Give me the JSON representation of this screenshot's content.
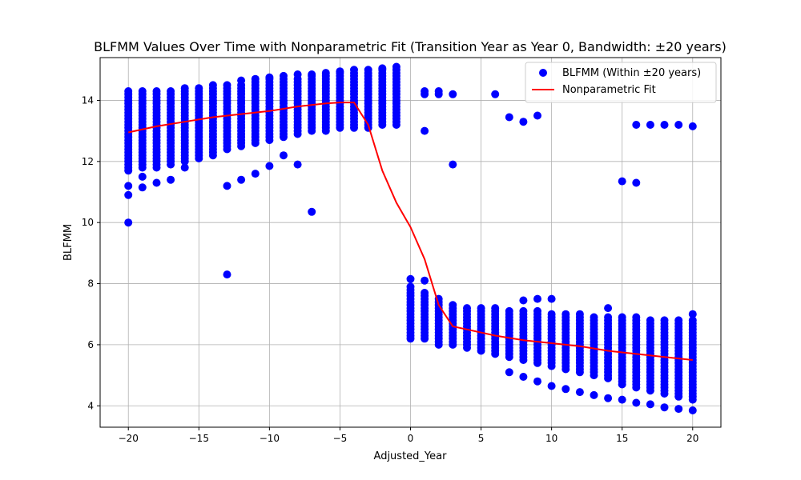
{
  "chart_data": {
    "type": "scatter",
    "title": "BLFMM Values Over Time with Nonparametric Fit (Transition Year as Year 0, Bandwidth: ±20 years)",
    "xlabel": "Adjusted_Year",
    "ylabel": "BLFMM",
    "xlim": [
      -22,
      22
    ],
    "ylim": [
      3.3,
      15.4
    ],
    "xticks": [
      -20,
      -15,
      -10,
      -5,
      0,
      5,
      10,
      15,
      20
    ],
    "yticks": [
      4,
      6,
      8,
      10,
      12,
      14
    ],
    "xtick_labels": [
      "−20",
      "−15",
      "−10",
      "−5",
      "0",
      "5",
      "10",
      "15",
      "20"
    ],
    "ytick_labels": [
      "4",
      "6",
      "8",
      "10",
      "12",
      "14"
    ],
    "grid": true,
    "legend_position": "top-right",
    "colors": {
      "scatter": "#0000ff",
      "fit": "#ff0000"
    },
    "series": [
      {
        "name": "BLFMM (Within ±20 years)",
        "kind": "scatter",
        "clusters": [
          {
            "x": -20,
            "lo": 11.7,
            "hi": 14.3
          },
          {
            "x": -19,
            "lo": 11.8,
            "hi": 14.3
          },
          {
            "x": -18,
            "lo": 11.8,
            "hi": 14.3
          },
          {
            "x": -17,
            "lo": 11.9,
            "hi": 14.3
          },
          {
            "x": -16,
            "lo": 12.0,
            "hi": 14.4
          },
          {
            "x": -15,
            "lo": 12.1,
            "hi": 14.4
          },
          {
            "x": -14,
            "lo": 12.2,
            "hi": 14.5
          },
          {
            "x": -13,
            "lo": 12.4,
            "hi": 14.5
          },
          {
            "x": -12,
            "lo": 12.5,
            "hi": 14.5
          },
          {
            "x": -11,
            "lo": 12.6,
            "hi": 14.6
          },
          {
            "x": -10,
            "lo": 12.7,
            "hi": 14.7
          },
          {
            "x": -9,
            "lo": 12.8,
            "hi": 14.7
          },
          {
            "x": -8,
            "lo": 12.9,
            "hi": 14.7
          },
          {
            "x": -7,
            "lo": 13.0,
            "hi": 14.8
          },
          {
            "x": -6,
            "lo": 13.0,
            "hi": 14.8
          },
          {
            "x": -5,
            "lo": 13.1,
            "hi": 14.9
          },
          {
            "x": -4,
            "lo": 13.1,
            "hi": 14.9
          },
          {
            "x": -3,
            "lo": 13.1,
            "hi": 14.9
          },
          {
            "x": -2,
            "lo": 13.2,
            "hi": 15.0
          },
          {
            "x": -1,
            "lo": 13.2,
            "hi": 15.0
          },
          {
            "x": 0,
            "lo": 6.2,
            "hi": 7.9
          },
          {
            "x": 1,
            "lo": 6.2,
            "hi": 7.7
          },
          {
            "x": 2,
            "lo": 6.0,
            "hi": 7.4
          },
          {
            "x": 3,
            "lo": 6.0,
            "hi": 7.3
          },
          {
            "x": 4,
            "lo": 5.9,
            "hi": 7.2
          },
          {
            "x": 5,
            "lo": 5.8,
            "hi": 7.2
          },
          {
            "x": 6,
            "lo": 5.7,
            "hi": 7.2
          },
          {
            "x": 7,
            "lo": 5.6,
            "hi": 7.1
          },
          {
            "x": 8,
            "lo": 5.5,
            "hi": 7.1
          },
          {
            "x": 9,
            "lo": 5.4,
            "hi": 7.1
          },
          {
            "x": 10,
            "lo": 5.3,
            "hi": 7.0
          },
          {
            "x": 11,
            "lo": 5.2,
            "hi": 7.0
          },
          {
            "x": 12,
            "lo": 5.1,
            "hi": 7.0
          },
          {
            "x": 13,
            "lo": 5.0,
            "hi": 6.9
          },
          {
            "x": 14,
            "lo": 4.9,
            "hi": 6.9
          },
          {
            "x": 15,
            "lo": 4.7,
            "hi": 6.9
          },
          {
            "x": 16,
            "lo": 4.6,
            "hi": 6.9
          },
          {
            "x": 17,
            "lo": 4.5,
            "hi": 6.8
          },
          {
            "x": 18,
            "lo": 4.4,
            "hi": 6.8
          },
          {
            "x": 19,
            "lo": 4.3,
            "hi": 6.8
          },
          {
            "x": 20,
            "lo": 4.2,
            "hi": 6.8
          }
        ],
        "outliers": [
          [
            -20,
            10.0
          ],
          [
            -20,
            10.9
          ],
          [
            -20,
            11.2
          ],
          [
            -19,
            11.15
          ],
          [
            -19,
            11.5
          ],
          [
            -18,
            11.3
          ],
          [
            -17,
            11.4
          ],
          [
            -16,
            11.8
          ],
          [
            -13,
            8.3
          ],
          [
            -13,
            11.2
          ],
          [
            -12,
            11.4
          ],
          [
            -11,
            11.6
          ],
          [
            -10,
            11.85
          ],
          [
            -9,
            12.2
          ],
          [
            -8,
            11.9
          ],
          [
            -7,
            10.35
          ],
          [
            -12,
            14.65
          ],
          [
            -11,
            14.7
          ],
          [
            -10,
            14.75
          ],
          [
            -9,
            14.8
          ],
          [
            -8,
            14.85
          ],
          [
            -7,
            14.85
          ],
          [
            -6,
            14.9
          ],
          [
            -5,
            14.95
          ],
          [
            -4,
            15.0
          ],
          [
            -3,
            15.0
          ],
          [
            -2,
            15.05
          ],
          [
            -1,
            15.1
          ],
          [
            1,
            14.3
          ],
          [
            1,
            14.2
          ],
          [
            1,
            13.0
          ],
          [
            2,
            14.3
          ],
          [
            2,
            14.2
          ],
          [
            3,
            14.2
          ],
          [
            3,
            11.9
          ],
          [
            6,
            14.2
          ],
          [
            7,
            13.45
          ],
          [
            8,
            13.3
          ],
          [
            9,
            13.5
          ],
          [
            15,
            11.35
          ],
          [
            16,
            11.3
          ],
          [
            16,
            13.2
          ],
          [
            17,
            13.2
          ],
          [
            18,
            13.2
          ],
          [
            19,
            13.2
          ],
          [
            20,
            13.15
          ],
          [
            0,
            8.15
          ],
          [
            1,
            8.1
          ],
          [
            2,
            7.5
          ],
          [
            8,
            7.45
          ],
          [
            9,
            7.5
          ],
          [
            10,
            7.5
          ],
          [
            14,
            7.2
          ],
          [
            20,
            7.0
          ],
          [
            7,
            5.1
          ],
          [
            8,
            4.95
          ],
          [
            9,
            4.8
          ],
          [
            10,
            4.65
          ],
          [
            11,
            4.55
          ],
          [
            12,
            4.45
          ],
          [
            13,
            4.35
          ],
          [
            14,
            4.25
          ],
          [
            15,
            4.2
          ],
          [
            16,
            4.1
          ],
          [
            17,
            4.05
          ],
          [
            18,
            3.95
          ],
          [
            19,
            3.9
          ],
          [
            20,
            3.85
          ]
        ]
      },
      {
        "name": "Nonparametric Fit",
        "kind": "line",
        "x": [
          -20,
          -18,
          -16,
          -14,
          -12,
          -10,
          -8,
          -6,
          -5,
          -4,
          -3,
          -2,
          -1,
          0,
          1,
          2,
          3,
          4,
          6,
          8,
          10,
          12,
          14,
          16,
          18,
          20
        ],
        "y": [
          12.95,
          13.15,
          13.3,
          13.45,
          13.55,
          13.65,
          13.8,
          13.9,
          13.93,
          13.93,
          13.2,
          11.7,
          10.65,
          9.85,
          8.8,
          7.3,
          6.6,
          6.5,
          6.3,
          6.15,
          6.05,
          5.95,
          5.8,
          5.7,
          5.6,
          5.5
        ]
      }
    ]
  }
}
